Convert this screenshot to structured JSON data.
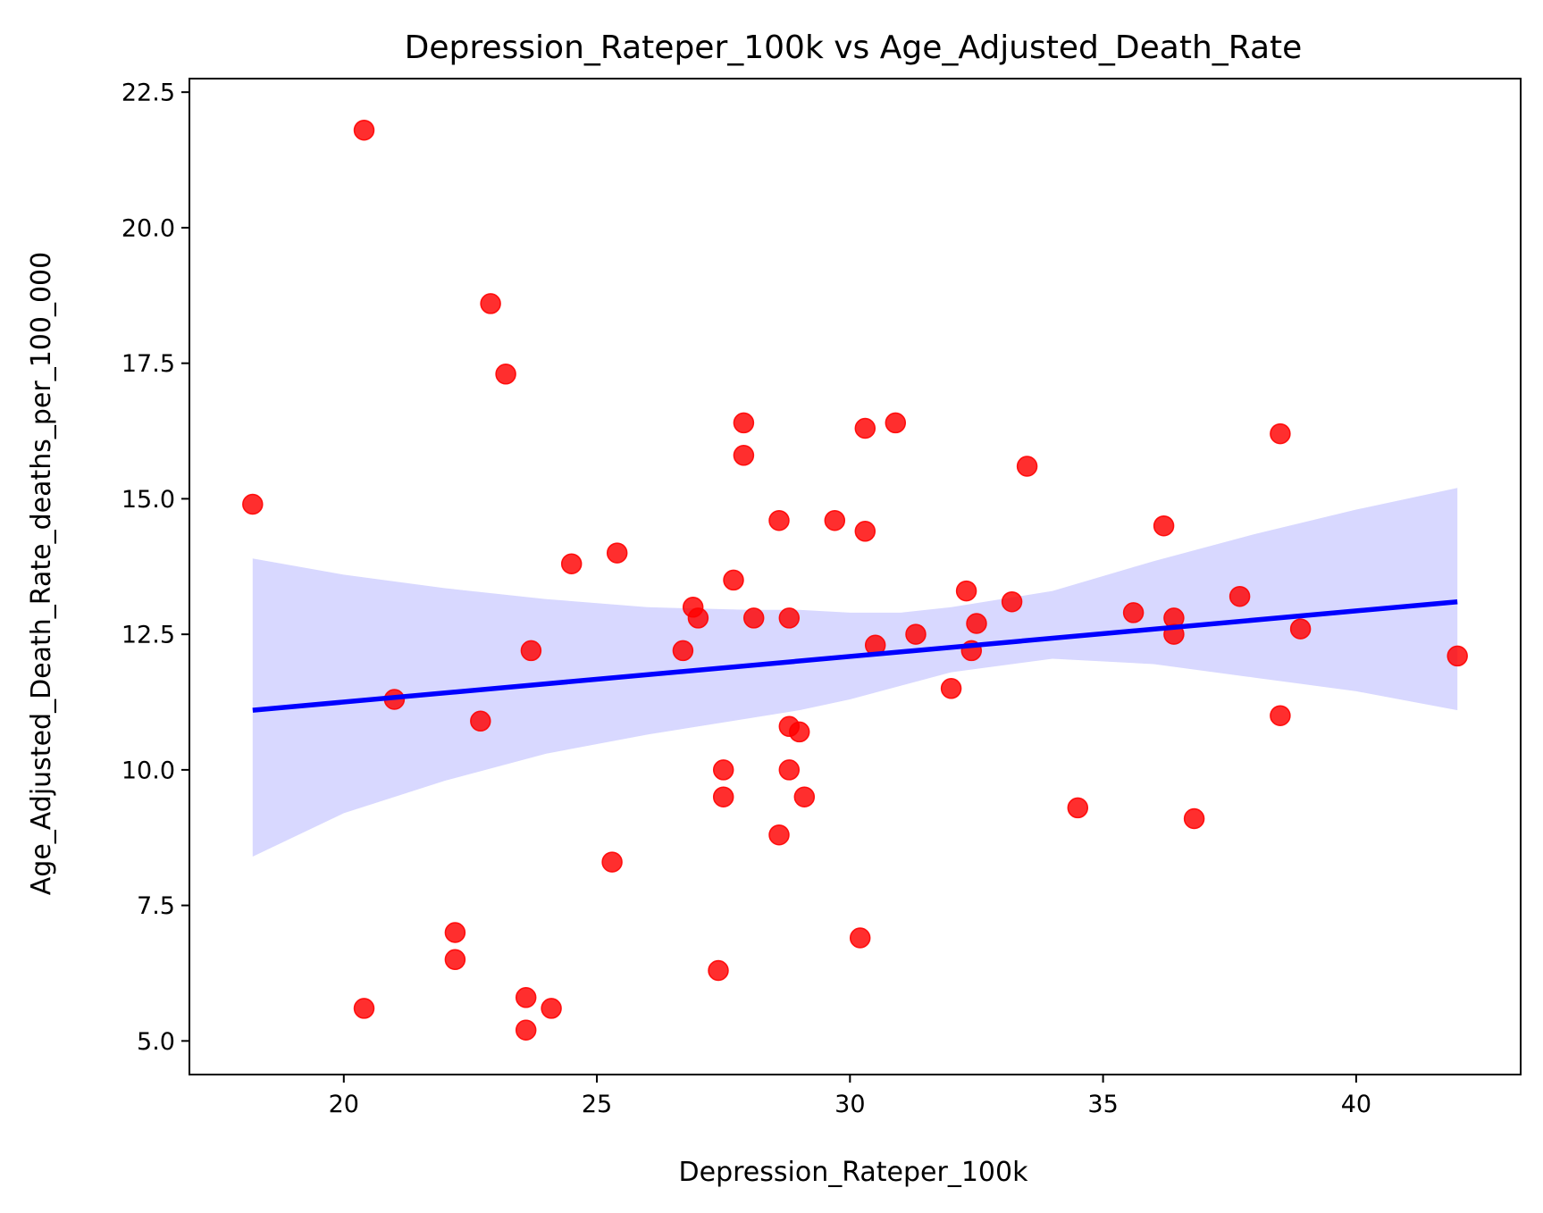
{
  "chart_data": {
    "type": "scatter",
    "title": "Depression_Rateper_100k vs Age_Adjusted_Death_Rate",
    "xlabel": "Depression_Rateper_100k",
    "ylabel": "Age_Adjusted_Death_Rate_deaths_per_100_000",
    "xlim": [
      16.95,
      43.25
    ],
    "ylim": [
      4.38,
      22.75
    ],
    "xticks": [
      20,
      25,
      30,
      35,
      40
    ],
    "yticks": [
      5.0,
      7.5,
      10.0,
      12.5,
      15.0,
      17.5,
      20.0,
      22.5
    ],
    "xtick_labels": [
      "20",
      "25",
      "30",
      "35",
      "40"
    ],
    "ytick_labels": [
      "5.0",
      "7.5",
      "10.0",
      "12.5",
      "15.0",
      "17.5",
      "20.0",
      "22.5"
    ],
    "grid": false,
    "points": {
      "color": "#ff0000",
      "x": [
        18.2,
        20.4,
        20.4,
        21.0,
        22.2,
        22.2,
        22.7,
        22.9,
        23.2,
        23.6,
        23.6,
        23.7,
        24.1,
        24.5,
        25.3,
        25.4,
        26.7,
        26.9,
        27.0,
        27.4,
        27.5,
        27.5,
        27.7,
        27.9,
        27.9,
        28.1,
        28.6,
        28.6,
        28.8,
        28.8,
        28.8,
        29.0,
        29.1,
        29.7,
        30.2,
        30.3,
        30.3,
        30.5,
        30.9,
        31.3,
        32.0,
        32.3,
        32.4,
        32.5,
        33.2,
        33.5,
        34.5,
        35.6,
        36.2,
        36.4,
        36.4,
        36.8,
        37.7,
        38.5,
        38.5,
        38.9,
        42.0
      ],
      "y": [
        14.9,
        21.8,
        5.6,
        11.3,
        7.0,
        6.5,
        10.9,
        18.6,
        17.3,
        5.8,
        5.2,
        12.2,
        5.6,
        13.8,
        8.3,
        14.0,
        12.2,
        13.0,
        12.8,
        6.3,
        10.0,
        9.5,
        13.5,
        16.4,
        15.8,
        12.8,
        14.6,
        8.8,
        12.8,
        10.8,
        10.0,
        10.7,
        9.5,
        14.6,
        6.9,
        16.3,
        14.4,
        12.3,
        16.4,
        12.5,
        11.5,
        13.3,
        12.2,
        12.7,
        13.1,
        15.6,
        9.3,
        12.9,
        14.5,
        12.8,
        12.5,
        9.1,
        13.2,
        16.2,
        11.0,
        12.6,
        12.1
      ]
    },
    "regression": {
      "color": "#0000ff",
      "x": [
        18.2,
        42.0
      ],
      "y": [
        11.1,
        13.1
      ]
    },
    "confidence_band": {
      "color": "#d8d8ff",
      "x": [
        18.2,
        20.0,
        22.0,
        24.0,
        26.0,
        28.0,
        29.0,
        30.0,
        31.0,
        32.0,
        34.0,
        36.0,
        38.0,
        40.0,
        42.0
      ],
      "lower": [
        8.4,
        9.2,
        9.8,
        10.3,
        10.65,
        10.95,
        11.1,
        11.3,
        11.55,
        11.8,
        12.05,
        11.95,
        11.7,
        11.45,
        11.1
      ],
      "upper": [
        13.9,
        13.6,
        13.35,
        13.15,
        13.0,
        12.95,
        12.95,
        12.9,
        12.9,
        13.0,
        13.3,
        13.85,
        14.35,
        14.8,
        15.2
      ]
    }
  }
}
